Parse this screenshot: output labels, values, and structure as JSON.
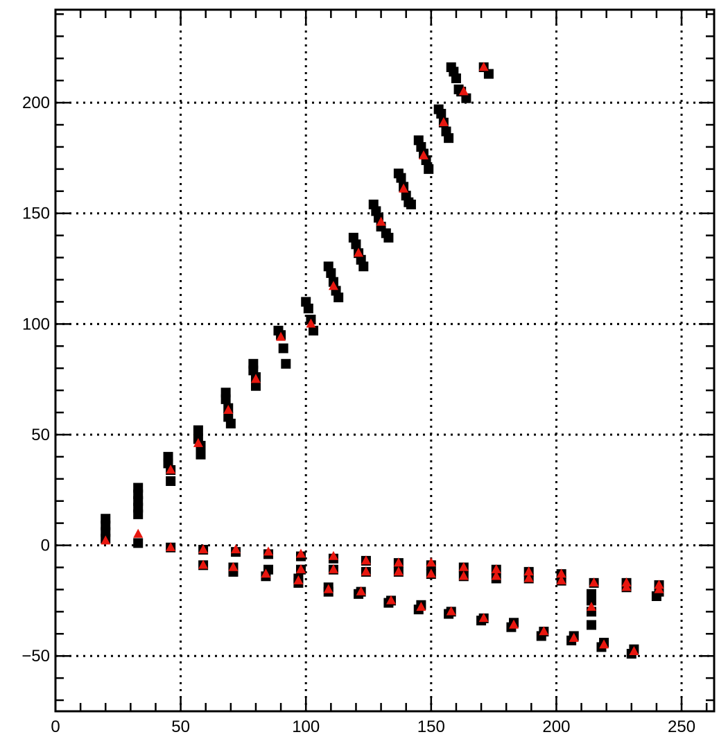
{
  "chart_data": {
    "type": "scatter",
    "title": "",
    "xlabel": "",
    "ylabel": "",
    "xlim": [
      0,
      263
    ],
    "ylim": [
      -75,
      242
    ],
    "grid": true,
    "xticks": [
      0,
      50,
      100,
      150,
      200,
      250
    ],
    "yticks": [
      -50,
      0,
      50,
      100,
      150,
      200
    ],
    "xtick_labels": [
      "0",
      "50",
      "100",
      "150",
      "200",
      "250"
    ],
    "ytick_labels": [
      "−50",
      "0",
      "50",
      "100",
      "150",
      "200"
    ],
    "series": [
      {
        "marker": "square",
        "color": "#000000",
        "points": [
          [
            20,
            12
          ],
          [
            20,
            9
          ],
          [
            20,
            6
          ],
          [
            20,
            3
          ],
          [
            33,
            26
          ],
          [
            33,
            23
          ],
          [
            33,
            20
          ],
          [
            33,
            17
          ],
          [
            33,
            14
          ],
          [
            33,
            1
          ],
          [
            45,
            40
          ],
          [
            45,
            37
          ],
          [
            46,
            34
          ],
          [
            46,
            29
          ],
          [
            46,
            -1
          ],
          [
            57,
            52
          ],
          [
            57,
            48
          ],
          [
            58,
            45
          ],
          [
            58,
            41
          ],
          [
            59,
            -2
          ],
          [
            59,
            -9
          ],
          [
            68,
            69
          ],
          [
            68,
            66
          ],
          [
            69,
            62
          ],
          [
            69,
            58
          ],
          [
            70,
            55
          ],
          [
            72,
            -3
          ],
          [
            71,
            -10
          ],
          [
            71,
            -12
          ],
          [
            79,
            82
          ],
          [
            79,
            79
          ],
          [
            80,
            76
          ],
          [
            80,
            72
          ],
          [
            85,
            -4
          ],
          [
            85,
            -11
          ],
          [
            84,
            -14
          ],
          [
            89,
            97
          ],
          [
            90,
            95
          ],
          [
            91,
            89
          ],
          [
            92,
            82
          ],
          [
            98,
            -5
          ],
          [
            98,
            -11
          ],
          [
            97,
            -15
          ],
          [
            97,
            -17
          ],
          [
            100,
            110
          ],
          [
            101,
            107
          ],
          [
            102,
            102
          ],
          [
            103,
            97
          ],
          [
            111,
            -6
          ],
          [
            111,
            -11
          ],
          [
            109,
            -19
          ],
          [
            109,
            -21
          ],
          [
            109,
            126
          ],
          [
            110,
            123
          ],
          [
            111,
            119
          ],
          [
            112,
            115
          ],
          [
            113,
            112
          ],
          [
            124,
            -7
          ],
          [
            124,
            -12
          ],
          [
            122,
            -21
          ],
          [
            121,
            -22
          ],
          [
            119,
            139
          ],
          [
            120,
            136
          ],
          [
            121,
            132
          ],
          [
            122,
            129
          ],
          [
            123,
            126
          ],
          [
            134,
            -25
          ],
          [
            133,
            -26
          ],
          [
            137,
            -8
          ],
          [
            137,
            -12
          ],
          [
            127,
            154
          ],
          [
            128,
            151
          ],
          [
            129,
            148
          ],
          [
            130,
            144
          ],
          [
            132,
            141
          ],
          [
            133,
            139
          ],
          [
            146,
            -27
          ],
          [
            145,
            -29
          ],
          [
            137,
            168
          ],
          [
            138,
            166
          ],
          [
            139,
            162
          ],
          [
            140,
            158
          ],
          [
            141,
            155
          ],
          [
            142,
            154
          ],
          [
            150,
            -9
          ],
          [
            150,
            -13
          ],
          [
            145,
            183
          ],
          [
            146,
            180
          ],
          [
            147,
            177
          ],
          [
            148,
            174
          ],
          [
            149,
            170
          ],
          [
            158,
            -30
          ],
          [
            157,
            -31
          ],
          [
            153,
            197
          ],
          [
            154,
            195
          ],
          [
            155,
            191
          ],
          [
            156,
            187
          ],
          [
            157,
            184
          ],
          [
            163,
            -10
          ],
          [
            163,
            -14
          ],
          [
            158,
            216
          ],
          [
            159,
            214
          ],
          [
            160,
            211
          ],
          [
            161,
            206
          ],
          [
            162,
            205
          ],
          [
            164,
            202
          ],
          [
            171,
            -33
          ],
          [
            170,
            -34
          ],
          [
            171,
            216
          ],
          [
            173,
            213
          ],
          [
            176,
            -11
          ],
          [
            176,
            -15
          ],
          [
            183,
            -35
          ],
          [
            182,
            -37
          ],
          [
            189,
            -12
          ],
          [
            189,
            -15
          ],
          [
            195,
            -39
          ],
          [
            194,
            -41
          ],
          [
            202,
            -13
          ],
          [
            202,
            -16
          ],
          [
            207,
            -41
          ],
          [
            206,
            -43
          ],
          [
            214,
            -22
          ],
          [
            214,
            -25
          ],
          [
            214,
            -30
          ],
          [
            214,
            -36
          ],
          [
            215,
            -17
          ],
          [
            219,
            -44
          ],
          [
            218,
            -46
          ],
          [
            228,
            -17
          ],
          [
            228,
            -19
          ],
          [
            231,
            -47
          ],
          [
            230,
            -49
          ],
          [
            241,
            -18
          ],
          [
            241,
            -21
          ],
          [
            240,
            -23
          ]
        ]
      },
      {
        "marker": "triangle",
        "color": "#e8170f",
        "points": [
          [
            20,
            2
          ],
          [
            33,
            5
          ],
          [
            46,
            34
          ],
          [
            46,
            -1
          ],
          [
            57,
            46
          ],
          [
            59,
            -2
          ],
          [
            59,
            -9
          ],
          [
            69,
            61
          ],
          [
            72,
            -2
          ],
          [
            71,
            -10
          ],
          [
            80,
            75
          ],
          [
            85,
            -3
          ],
          [
            84,
            -13
          ],
          [
            90,
            94
          ],
          [
            98,
            -4
          ],
          [
            98,
            -11
          ],
          [
            97,
            -16
          ],
          [
            102,
            100
          ],
          [
            111,
            -5
          ],
          [
            111,
            -11
          ],
          [
            109,
            -20
          ],
          [
            111,
            117
          ],
          [
            124,
            -7
          ],
          [
            124,
            -12
          ],
          [
            122,
            -21
          ],
          [
            121,
            132
          ],
          [
            134,
            -25
          ],
          [
            137,
            -8
          ],
          [
            137,
            -12
          ],
          [
            130,
            146
          ],
          [
            146,
            -28
          ],
          [
            139,
            161
          ],
          [
            150,
            -8
          ],
          [
            150,
            -13
          ],
          [
            147,
            176
          ],
          [
            158,
            -30
          ],
          [
            155,
            191
          ],
          [
            163,
            -10
          ],
          [
            163,
            -14
          ],
          [
            163,
            205
          ],
          [
            171,
            -33
          ],
          [
            171,
            216
          ],
          [
            176,
            -11
          ],
          [
            176,
            -14
          ],
          [
            183,
            -36
          ],
          [
            189,
            -12
          ],
          [
            189,
            -15
          ],
          [
            195,
            -39
          ],
          [
            202,
            -13
          ],
          [
            202,
            -16
          ],
          [
            207,
            -42
          ],
          [
            214,
            -28
          ],
          [
            215,
            -17
          ],
          [
            219,
            -45
          ],
          [
            228,
            -17
          ],
          [
            228,
            -19
          ],
          [
            231,
            -48
          ],
          [
            241,
            -18
          ],
          [
            241,
            -20
          ]
        ]
      }
    ]
  }
}
